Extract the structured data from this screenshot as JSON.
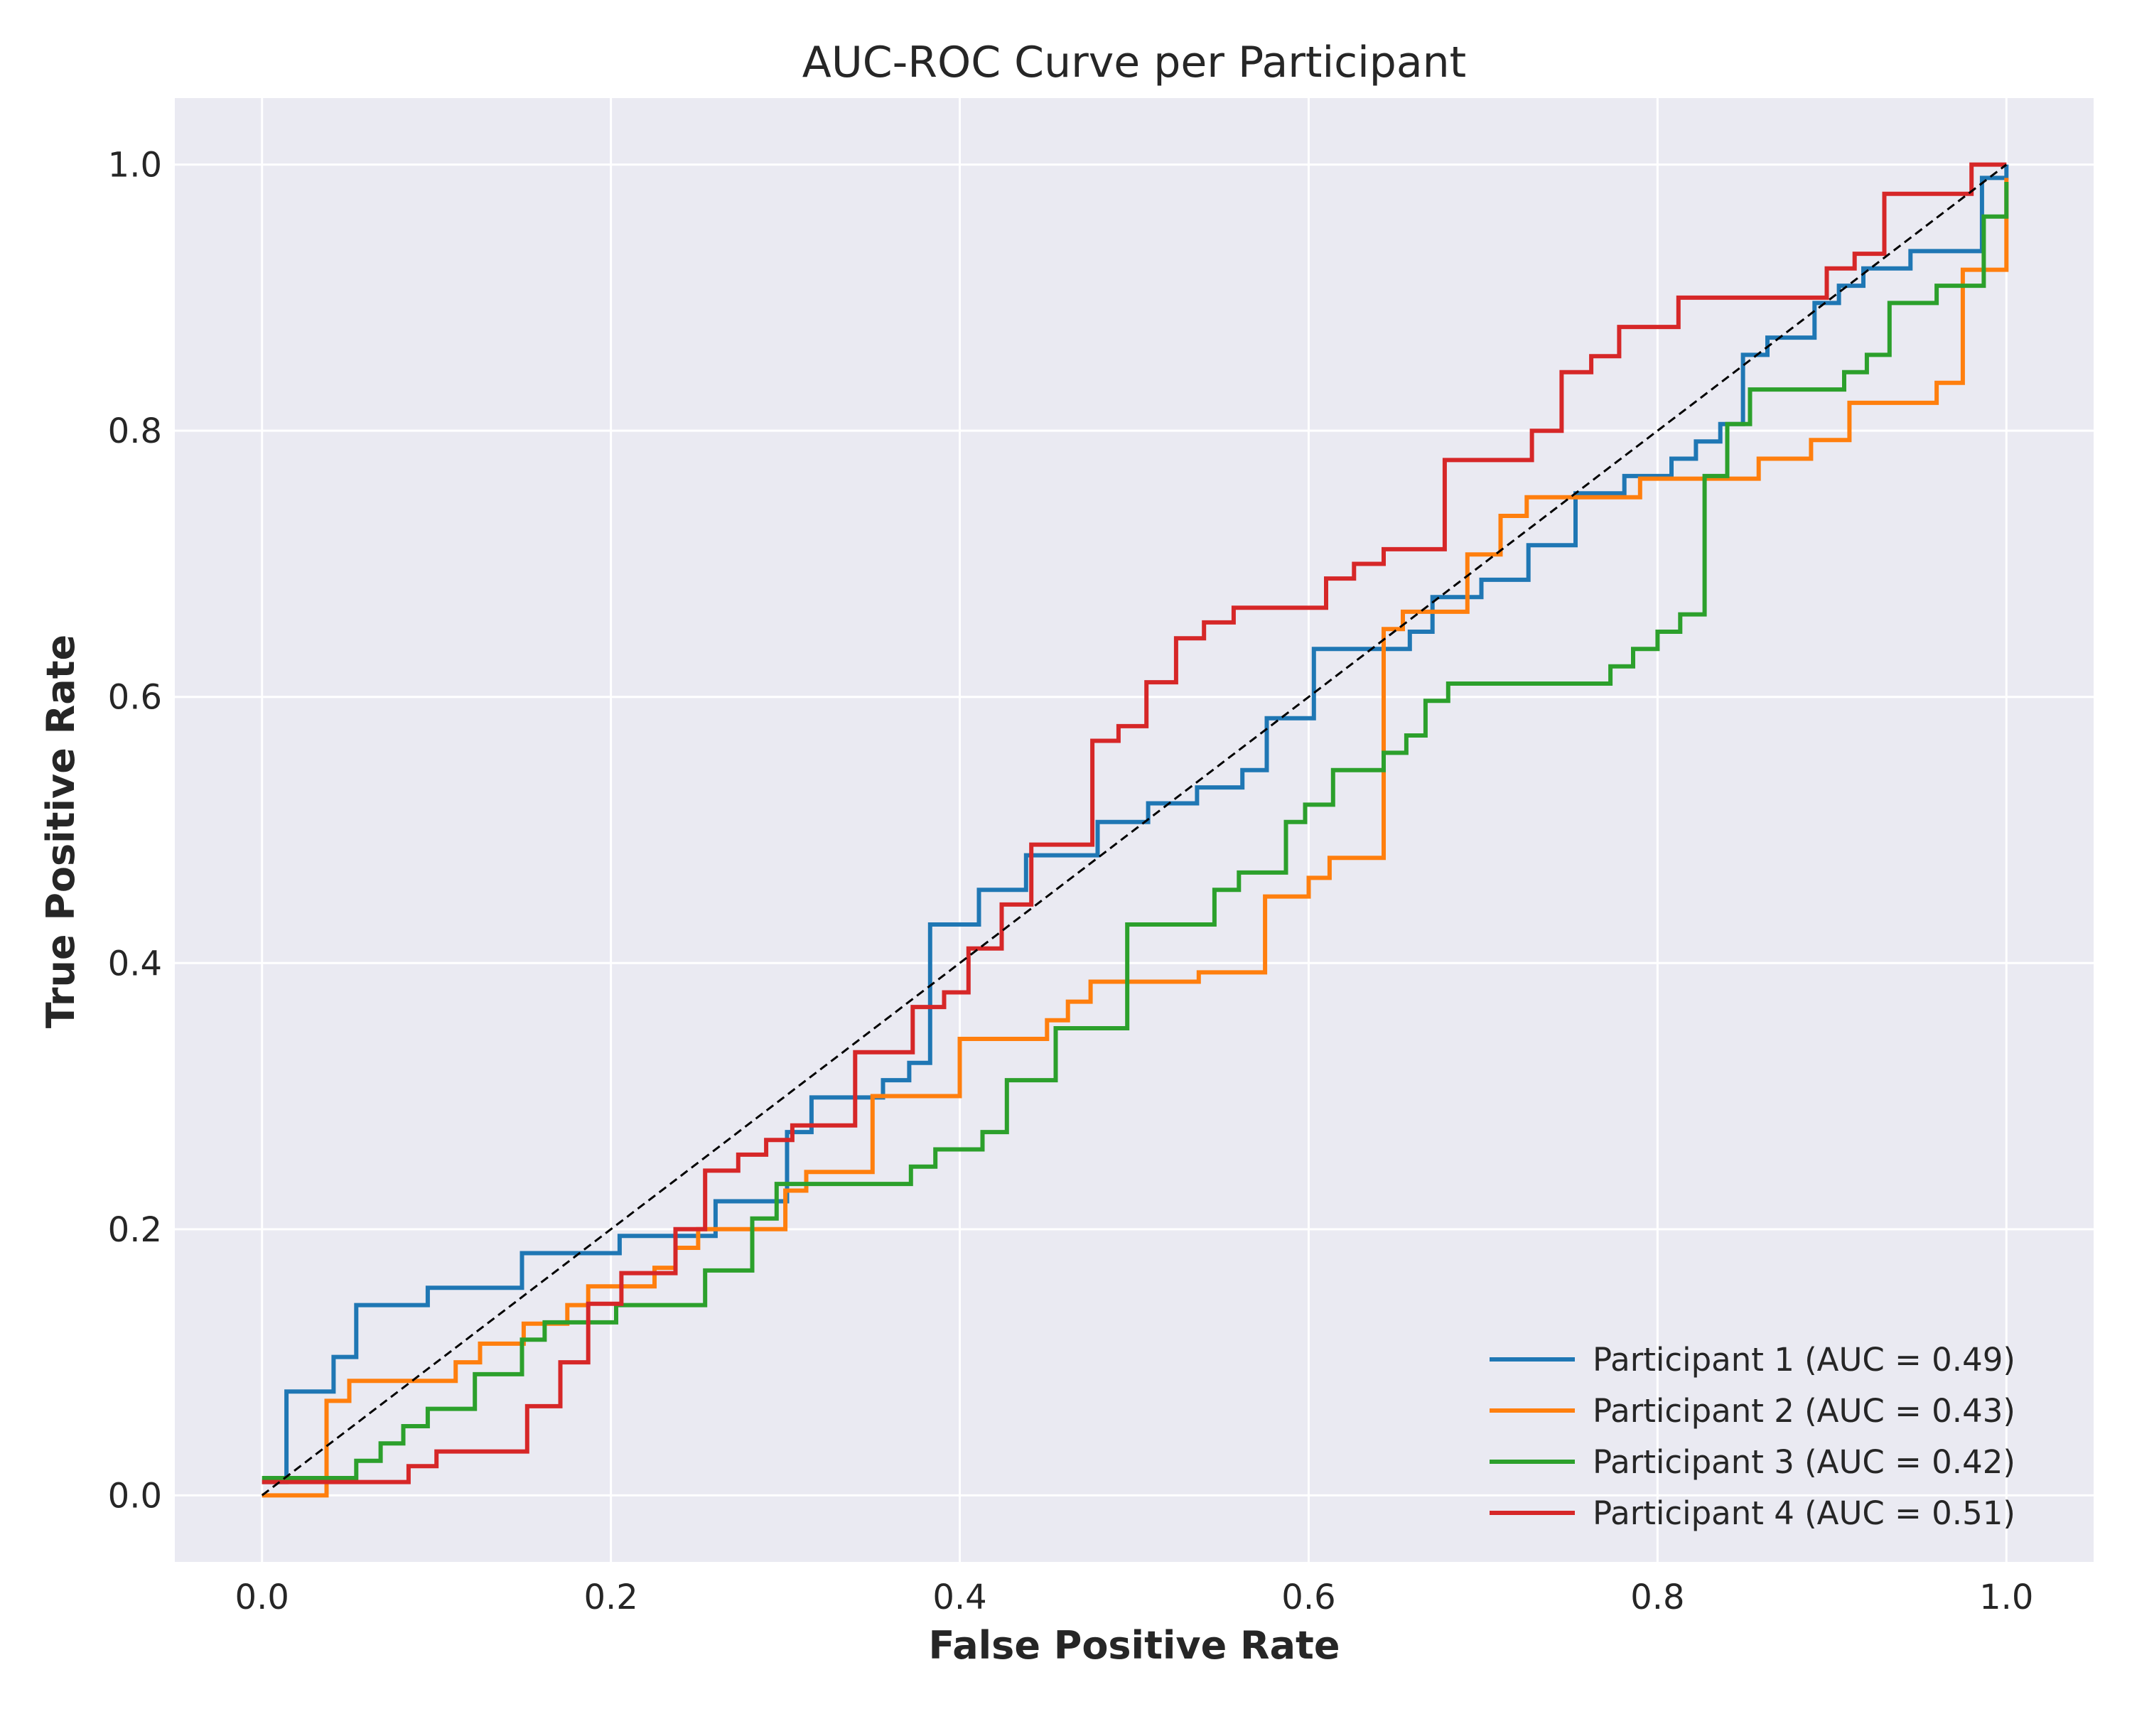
{
  "chart_data": {
    "type": "line",
    "title": "AUC-ROC Curve per Participant",
    "xlabel": "False Positive Rate",
    "ylabel": "True Positive Rate",
    "xlim": [
      -0.05,
      1.05
    ],
    "ylim": [
      -0.05,
      1.05
    ],
    "xticks": [
      "0.0",
      "0.2",
      "0.4",
      "0.6",
      "0.8",
      "1.0"
    ],
    "yticks": [
      "0.0",
      "0.2",
      "0.4",
      "0.6",
      "0.8",
      "1.0"
    ],
    "grid": true,
    "legend_position": "bottom-right",
    "background": "#eaeaf2",
    "diagonal_reference": {
      "style": "dashed",
      "color": "#000000",
      "points": [
        [
          0,
          0
        ],
        [
          1,
          1
        ]
      ]
    },
    "series": [
      {
        "name": "Participant 1 (AUC = 0.49)",
        "color": "#1f77b4",
        "points": [
          [
            0,
            0.01
          ],
          [
            0.014,
            0.01
          ],
          [
            0.014,
            0.078
          ],
          [
            0.041,
            0.078
          ],
          [
            0.041,
            0.104
          ],
          [
            0.054,
            0.104
          ],
          [
            0.054,
            0.143
          ],
          [
            0.095,
            0.143
          ],
          [
            0.095,
            0.156
          ],
          [
            0.149,
            0.156
          ],
          [
            0.149,
            0.182
          ],
          [
            0.205,
            0.182
          ],
          [
            0.205,
            0.195
          ],
          [
            0.26,
            0.195
          ],
          [
            0.26,
            0.221
          ],
          [
            0.301,
            0.221
          ],
          [
            0.301,
            0.273
          ],
          [
            0.315,
            0.273
          ],
          [
            0.315,
            0.299
          ],
          [
            0.356,
            0.299
          ],
          [
            0.356,
            0.312
          ],
          [
            0.371,
            0.312
          ],
          [
            0.371,
            0.325
          ],
          [
            0.383,
            0.325
          ],
          [
            0.383,
            0.429
          ],
          [
            0.411,
            0.429
          ],
          [
            0.411,
            0.455
          ],
          [
            0.438,
            0.455
          ],
          [
            0.438,
            0.481
          ],
          [
            0.479,
            0.481
          ],
          [
            0.479,
            0.506
          ],
          [
            0.508,
            0.506
          ],
          [
            0.508,
            0.52
          ],
          [
            0.536,
            0.52
          ],
          [
            0.536,
            0.532
          ],
          [
            0.562,
            0.532
          ],
          [
            0.562,
            0.545
          ],
          [
            0.576,
            0.545
          ],
          [
            0.576,
            0.584
          ],
          [
            0.603,
            0.584
          ],
          [
            0.603,
            0.636
          ],
          [
            0.658,
            0.636
          ],
          [
            0.658,
            0.649
          ],
          [
            0.671,
            0.649
          ],
          [
            0.671,
            0.675
          ],
          [
            0.699,
            0.675
          ],
          [
            0.699,
            0.688
          ],
          [
            0.726,
            0.688
          ],
          [
            0.726,
            0.714
          ],
          [
            0.753,
            0.714
          ],
          [
            0.753,
            0.753
          ],
          [
            0.781,
            0.753
          ],
          [
            0.781,
            0.766
          ],
          [
            0.808,
            0.766
          ],
          [
            0.808,
            0.779
          ],
          [
            0.822,
            0.779
          ],
          [
            0.822,
            0.792
          ],
          [
            0.836,
            0.792
          ],
          [
            0.836,
            0.805
          ],
          [
            0.849,
            0.805
          ],
          [
            0.849,
            0.857
          ],
          [
            0.863,
            0.857
          ],
          [
            0.863,
            0.87
          ],
          [
            0.89,
            0.87
          ],
          [
            0.89,
            0.896
          ],
          [
            0.904,
            0.896
          ],
          [
            0.904,
            0.909
          ],
          [
            0.918,
            0.909
          ],
          [
            0.918,
            0.922
          ],
          [
            0.945,
            0.922
          ],
          [
            0.945,
            0.935
          ],
          [
            0.986,
            0.935
          ],
          [
            0.986,
            0.99
          ],
          [
            1,
            0.99
          ],
          [
            1,
            1
          ]
        ]
      },
      {
        "name": "Participant 2 (AUC = 0.43)",
        "color": "#ff7f0e",
        "points": [
          [
            0,
            0
          ],
          [
            0.037,
            0
          ],
          [
            0.037,
            0.071
          ],
          [
            0.05,
            0.071
          ],
          [
            0.05,
            0.086
          ],
          [
            0.111,
            0.086
          ],
          [
            0.111,
            0.1
          ],
          [
            0.125,
            0.1
          ],
          [
            0.125,
            0.114
          ],
          [
            0.15,
            0.114
          ],
          [
            0.15,
            0.129
          ],
          [
            0.175,
            0.129
          ],
          [
            0.175,
            0.143
          ],
          [
            0.187,
            0.143
          ],
          [
            0.187,
            0.157
          ],
          [
            0.225,
            0.157
          ],
          [
            0.225,
            0.171
          ],
          [
            0.237,
            0.171
          ],
          [
            0.237,
            0.186
          ],
          [
            0.25,
            0.186
          ],
          [
            0.25,
            0.2
          ],
          [
            0.3,
            0.2
          ],
          [
            0.3,
            0.229
          ],
          [
            0.312,
            0.229
          ],
          [
            0.312,
            0.243
          ],
          [
            0.35,
            0.243
          ],
          [
            0.35,
            0.3
          ],
          [
            0.4,
            0.3
          ],
          [
            0.4,
            0.343
          ],
          [
            0.45,
            0.343
          ],
          [
            0.45,
            0.357
          ],
          [
            0.462,
            0.357
          ],
          [
            0.462,
            0.371
          ],
          [
            0.475,
            0.371
          ],
          [
            0.475,
            0.386
          ],
          [
            0.537,
            0.386
          ],
          [
            0.537,
            0.393
          ],
          [
            0.575,
            0.393
          ],
          [
            0.575,
            0.45
          ],
          [
            0.6,
            0.45
          ],
          [
            0.6,
            0.464
          ],
          [
            0.612,
            0.464
          ],
          [
            0.612,
            0.479
          ],
          [
            0.643,
            0.479
          ],
          [
            0.643,
            0.651
          ],
          [
            0.654,
            0.651
          ],
          [
            0.654,
            0.664
          ],
          [
            0.691,
            0.664
          ],
          [
            0.691,
            0.707
          ],
          [
            0.71,
            0.707
          ],
          [
            0.71,
            0.736
          ],
          [
            0.725,
            0.736
          ],
          [
            0.725,
            0.75
          ],
          [
            0.79,
            0.75
          ],
          [
            0.79,
            0.764
          ],
          [
            0.858,
            0.764
          ],
          [
            0.858,
            0.779
          ],
          [
            0.888,
            0.779
          ],
          [
            0.888,
            0.793
          ],
          [
            0.91,
            0.793
          ],
          [
            0.91,
            0.821
          ],
          [
            0.96,
            0.821
          ],
          [
            0.96,
            0.836
          ],
          [
            0.975,
            0.836
          ],
          [
            0.975,
            0.921
          ],
          [
            1,
            0.921
          ],
          [
            1,
            0.99
          ]
        ]
      },
      {
        "name": "Participant 3 (AUC = 0.42)",
        "color": "#2ca02c",
        "points": [
          [
            0,
            0.013
          ],
          [
            0.054,
            0.013
          ],
          [
            0.054,
            0.026
          ],
          [
            0.068,
            0.026
          ],
          [
            0.068,
            0.039
          ],
          [
            0.081,
            0.039
          ],
          [
            0.081,
            0.052
          ],
          [
            0.095,
            0.052
          ],
          [
            0.095,
            0.065
          ],
          [
            0.122,
            0.065
          ],
          [
            0.122,
            0.091
          ],
          [
            0.149,
            0.091
          ],
          [
            0.149,
            0.117
          ],
          [
            0.162,
            0.117
          ],
          [
            0.162,
            0.13
          ],
          [
            0.203,
            0.13
          ],
          [
            0.203,
            0.143
          ],
          [
            0.254,
            0.143
          ],
          [
            0.254,
            0.169
          ],
          [
            0.281,
            0.169
          ],
          [
            0.281,
            0.208
          ],
          [
            0.295,
            0.208
          ],
          [
            0.295,
            0.234
          ],
          [
            0.372,
            0.234
          ],
          [
            0.372,
            0.247
          ],
          [
            0.386,
            0.247
          ],
          [
            0.386,
            0.26
          ],
          [
            0.413,
            0.26
          ],
          [
            0.413,
            0.273
          ],
          [
            0.427,
            0.273
          ],
          [
            0.427,
            0.312
          ],
          [
            0.455,
            0.312
          ],
          [
            0.455,
            0.351
          ],
          [
            0.496,
            0.351
          ],
          [
            0.496,
            0.429
          ],
          [
            0.546,
            0.429
          ],
          [
            0.546,
            0.455
          ],
          [
            0.56,
            0.455
          ],
          [
            0.56,
            0.468
          ],
          [
            0.587,
            0.468
          ],
          [
            0.587,
            0.506
          ],
          [
            0.598,
            0.506
          ],
          [
            0.598,
            0.519
          ],
          [
            0.614,
            0.519
          ],
          [
            0.614,
            0.545
          ],
          [
            0.643,
            0.545
          ],
          [
            0.643,
            0.558
          ],
          [
            0.656,
            0.558
          ],
          [
            0.656,
            0.571
          ],
          [
            0.667,
            0.571
          ],
          [
            0.667,
            0.597
          ],
          [
            0.68,
            0.597
          ],
          [
            0.68,
            0.61
          ],
          [
            0.773,
            0.61
          ],
          [
            0.773,
            0.623
          ],
          [
            0.786,
            0.623
          ],
          [
            0.786,
            0.636
          ],
          [
            0.8,
            0.636
          ],
          [
            0.8,
            0.649
          ],
          [
            0.813,
            0.649
          ],
          [
            0.813,
            0.662
          ],
          [
            0.827,
            0.662
          ],
          [
            0.827,
            0.766
          ],
          [
            0.84,
            0.766
          ],
          [
            0.84,
            0.805
          ],
          [
            0.853,
            0.805
          ],
          [
            0.853,
            0.831
          ],
          [
            0.907,
            0.831
          ],
          [
            0.907,
            0.844
          ],
          [
            0.92,
            0.844
          ],
          [
            0.92,
            0.857
          ],
          [
            0.933,
            0.857
          ],
          [
            0.933,
            0.896
          ],
          [
            0.96,
            0.896
          ],
          [
            0.96,
            0.909
          ],
          [
            0.987,
            0.909
          ],
          [
            0.987,
            0.961
          ],
          [
            1,
            0.961
          ],
          [
            1,
            0.987
          ]
        ]
      },
      {
        "name": "Participant 4 (AUC = 0.51)",
        "color": "#d62728",
        "points": [
          [
            0,
            0.01
          ],
          [
            0.084,
            0.01
          ],
          [
            0.084,
            0.022
          ],
          [
            0.1,
            0.022
          ],
          [
            0.1,
            0.033
          ],
          [
            0.152,
            0.033
          ],
          [
            0.152,
            0.067
          ],
          [
            0.171,
            0.067
          ],
          [
            0.171,
            0.1
          ],
          [
            0.187,
            0.1
          ],
          [
            0.187,
            0.144
          ],
          [
            0.206,
            0.144
          ],
          [
            0.206,
            0.167
          ],
          [
            0.237,
            0.167
          ],
          [
            0.237,
            0.2
          ],
          [
            0.254,
            0.2
          ],
          [
            0.254,
            0.244
          ],
          [
            0.273,
            0.244
          ],
          [
            0.273,
            0.256
          ],
          [
            0.289,
            0.256
          ],
          [
            0.289,
            0.267
          ],
          [
            0.304,
            0.267
          ],
          [
            0.304,
            0.278
          ],
          [
            0.34,
            0.278
          ],
          [
            0.34,
            0.333
          ],
          [
            0.373,
            0.333
          ],
          [
            0.373,
            0.367
          ],
          [
            0.391,
            0.367
          ],
          [
            0.391,
            0.378
          ],
          [
            0.405,
            0.378
          ],
          [
            0.405,
            0.411
          ],
          [
            0.424,
            0.411
          ],
          [
            0.424,
            0.444
          ],
          [
            0.441,
            0.444
          ],
          [
            0.441,
            0.489
          ],
          [
            0.476,
            0.489
          ],
          [
            0.476,
            0.567
          ],
          [
            0.491,
            0.567
          ],
          [
            0.491,
            0.578
          ],
          [
            0.507,
            0.578
          ],
          [
            0.507,
            0.611
          ],
          [
            0.524,
            0.611
          ],
          [
            0.524,
            0.644
          ],
          [
            0.54,
            0.644
          ],
          [
            0.54,
            0.656
          ],
          [
            0.557,
            0.656
          ],
          [
            0.557,
            0.667
          ],
          [
            0.61,
            0.667
          ],
          [
            0.61,
            0.689
          ],
          [
            0.626,
            0.689
          ],
          [
            0.626,
            0.7
          ],
          [
            0.643,
            0.7
          ],
          [
            0.643,
            0.711
          ],
          [
            0.678,
            0.711
          ],
          [
            0.678,
            0.778
          ],
          [
            0.728,
            0.778
          ],
          [
            0.728,
            0.8
          ],
          [
            0.745,
            0.8
          ],
          [
            0.745,
            0.844
          ],
          [
            0.762,
            0.844
          ],
          [
            0.762,
            0.856
          ],
          [
            0.778,
            0.856
          ],
          [
            0.778,
            0.878
          ],
          [
            0.812,
            0.878
          ],
          [
            0.812,
            0.9
          ],
          [
            0.897,
            0.9
          ],
          [
            0.897,
            0.922
          ],
          [
            0.913,
            0.922
          ],
          [
            0.913,
            0.933
          ],
          [
            0.93,
            0.933
          ],
          [
            0.93,
            0.978
          ],
          [
            0.98,
            0.978
          ],
          [
            0.98,
            1
          ],
          [
            1,
            1
          ]
        ]
      }
    ]
  }
}
